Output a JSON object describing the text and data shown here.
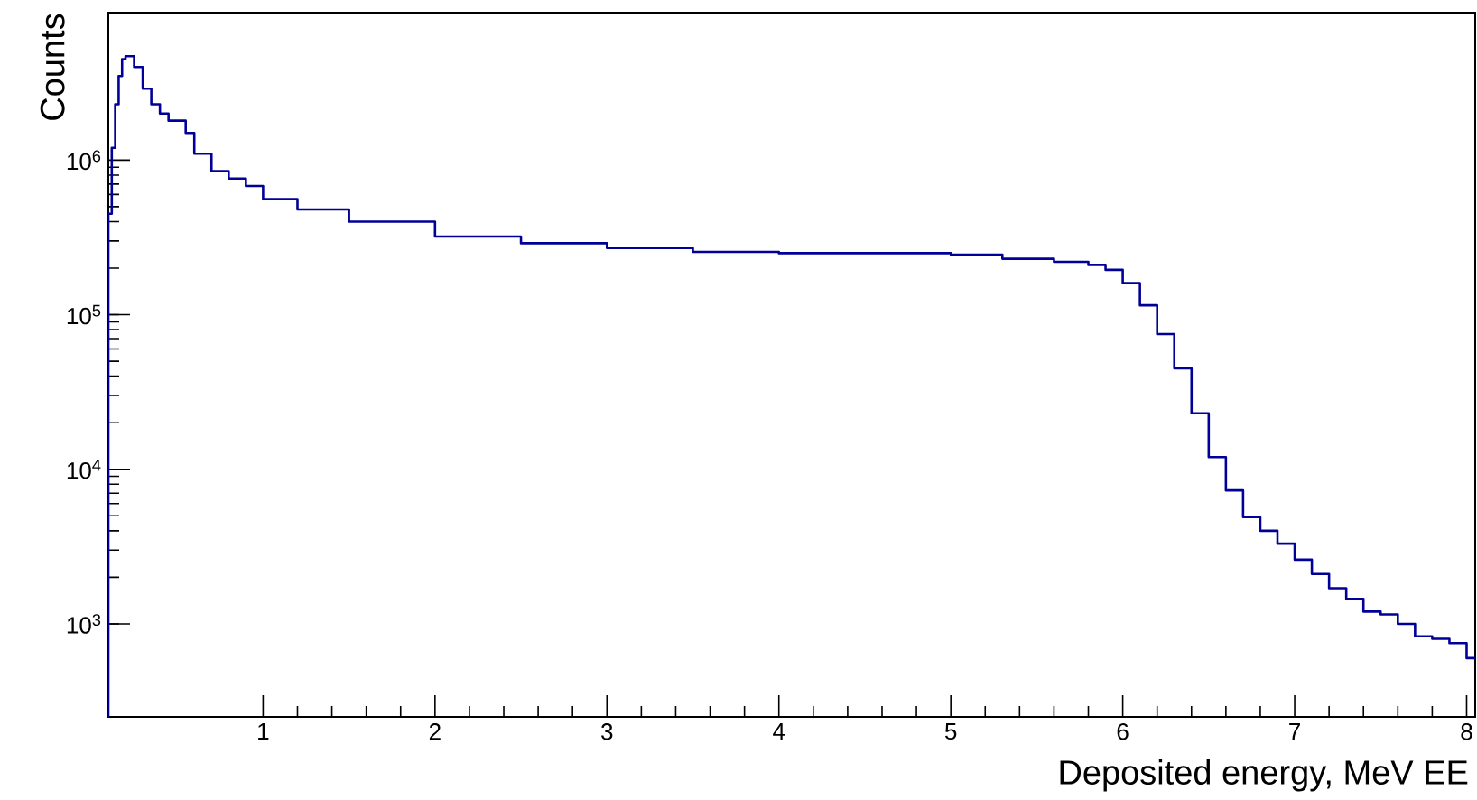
{
  "chart_data": {
    "type": "histogram",
    "xlabel": "Deposited energy, MeV EE",
    "ylabel": "Counts",
    "bins": [
      0.1,
      0.12,
      0.14,
      0.16,
      0.18,
      0.2,
      0.25,
      0.3,
      0.35,
      0.4,
      0.45,
      0.5,
      0.55,
      0.6,
      0.7,
      0.8,
      0.9,
      1.0,
      1.2,
      1.5,
      2.0,
      2.5,
      3.0,
      3.5,
      4.0,
      4.5,
      5.0,
      5.3,
      5.6,
      5.8,
      5.9,
      6.0,
      6.1,
      6.2,
      6.3,
      6.4,
      6.5,
      6.6,
      6.7,
      6.8,
      6.9,
      7.0,
      7.1,
      7.2,
      7.3,
      7.4,
      7.5,
      7.6,
      7.7,
      7.8,
      7.9,
      8.0,
      8.05
    ],
    "values": [
      450000,
      1200000,
      2300000,
      3500000,
      4500000,
      4700000,
      4000000,
      2900000,
      2300000,
      2000000,
      1800000,
      1800000,
      1500000,
      1100000,
      850000,
      760000,
      680000,
      560000,
      480000,
      400000,
      320000,
      290000,
      270000,
      255000,
      250000,
      250000,
      245000,
      230000,
      220000,
      210000,
      195000,
      160000,
      115000,
      75000,
      45000,
      23000,
      12000,
      7300,
      4900,
      4000,
      3300,
      2600,
      2100,
      1700,
      1450,
      1200,
      1150,
      1000,
      830,
      800,
      750,
      600
    ],
    "color": "#000099",
    "log": true,
    "xlim": [
      0.1,
      8.05
    ],
    "ylim": [
      250,
      9000000
    ],
    "xticks": [
      1,
      2,
      3,
      4,
      5,
      6,
      7,
      8
    ],
    "yticks": [
      {
        "value": 1000,
        "label": "10$^{3}$"
      },
      {
        "value": 10000,
        "label": "10$^{4}$"
      },
      {
        "value": 100000,
        "label": "10$^{5}$"
      },
      {
        "value": 1000000,
        "label": "10$^{6}$"
      }
    ],
    "grid": false
  }
}
